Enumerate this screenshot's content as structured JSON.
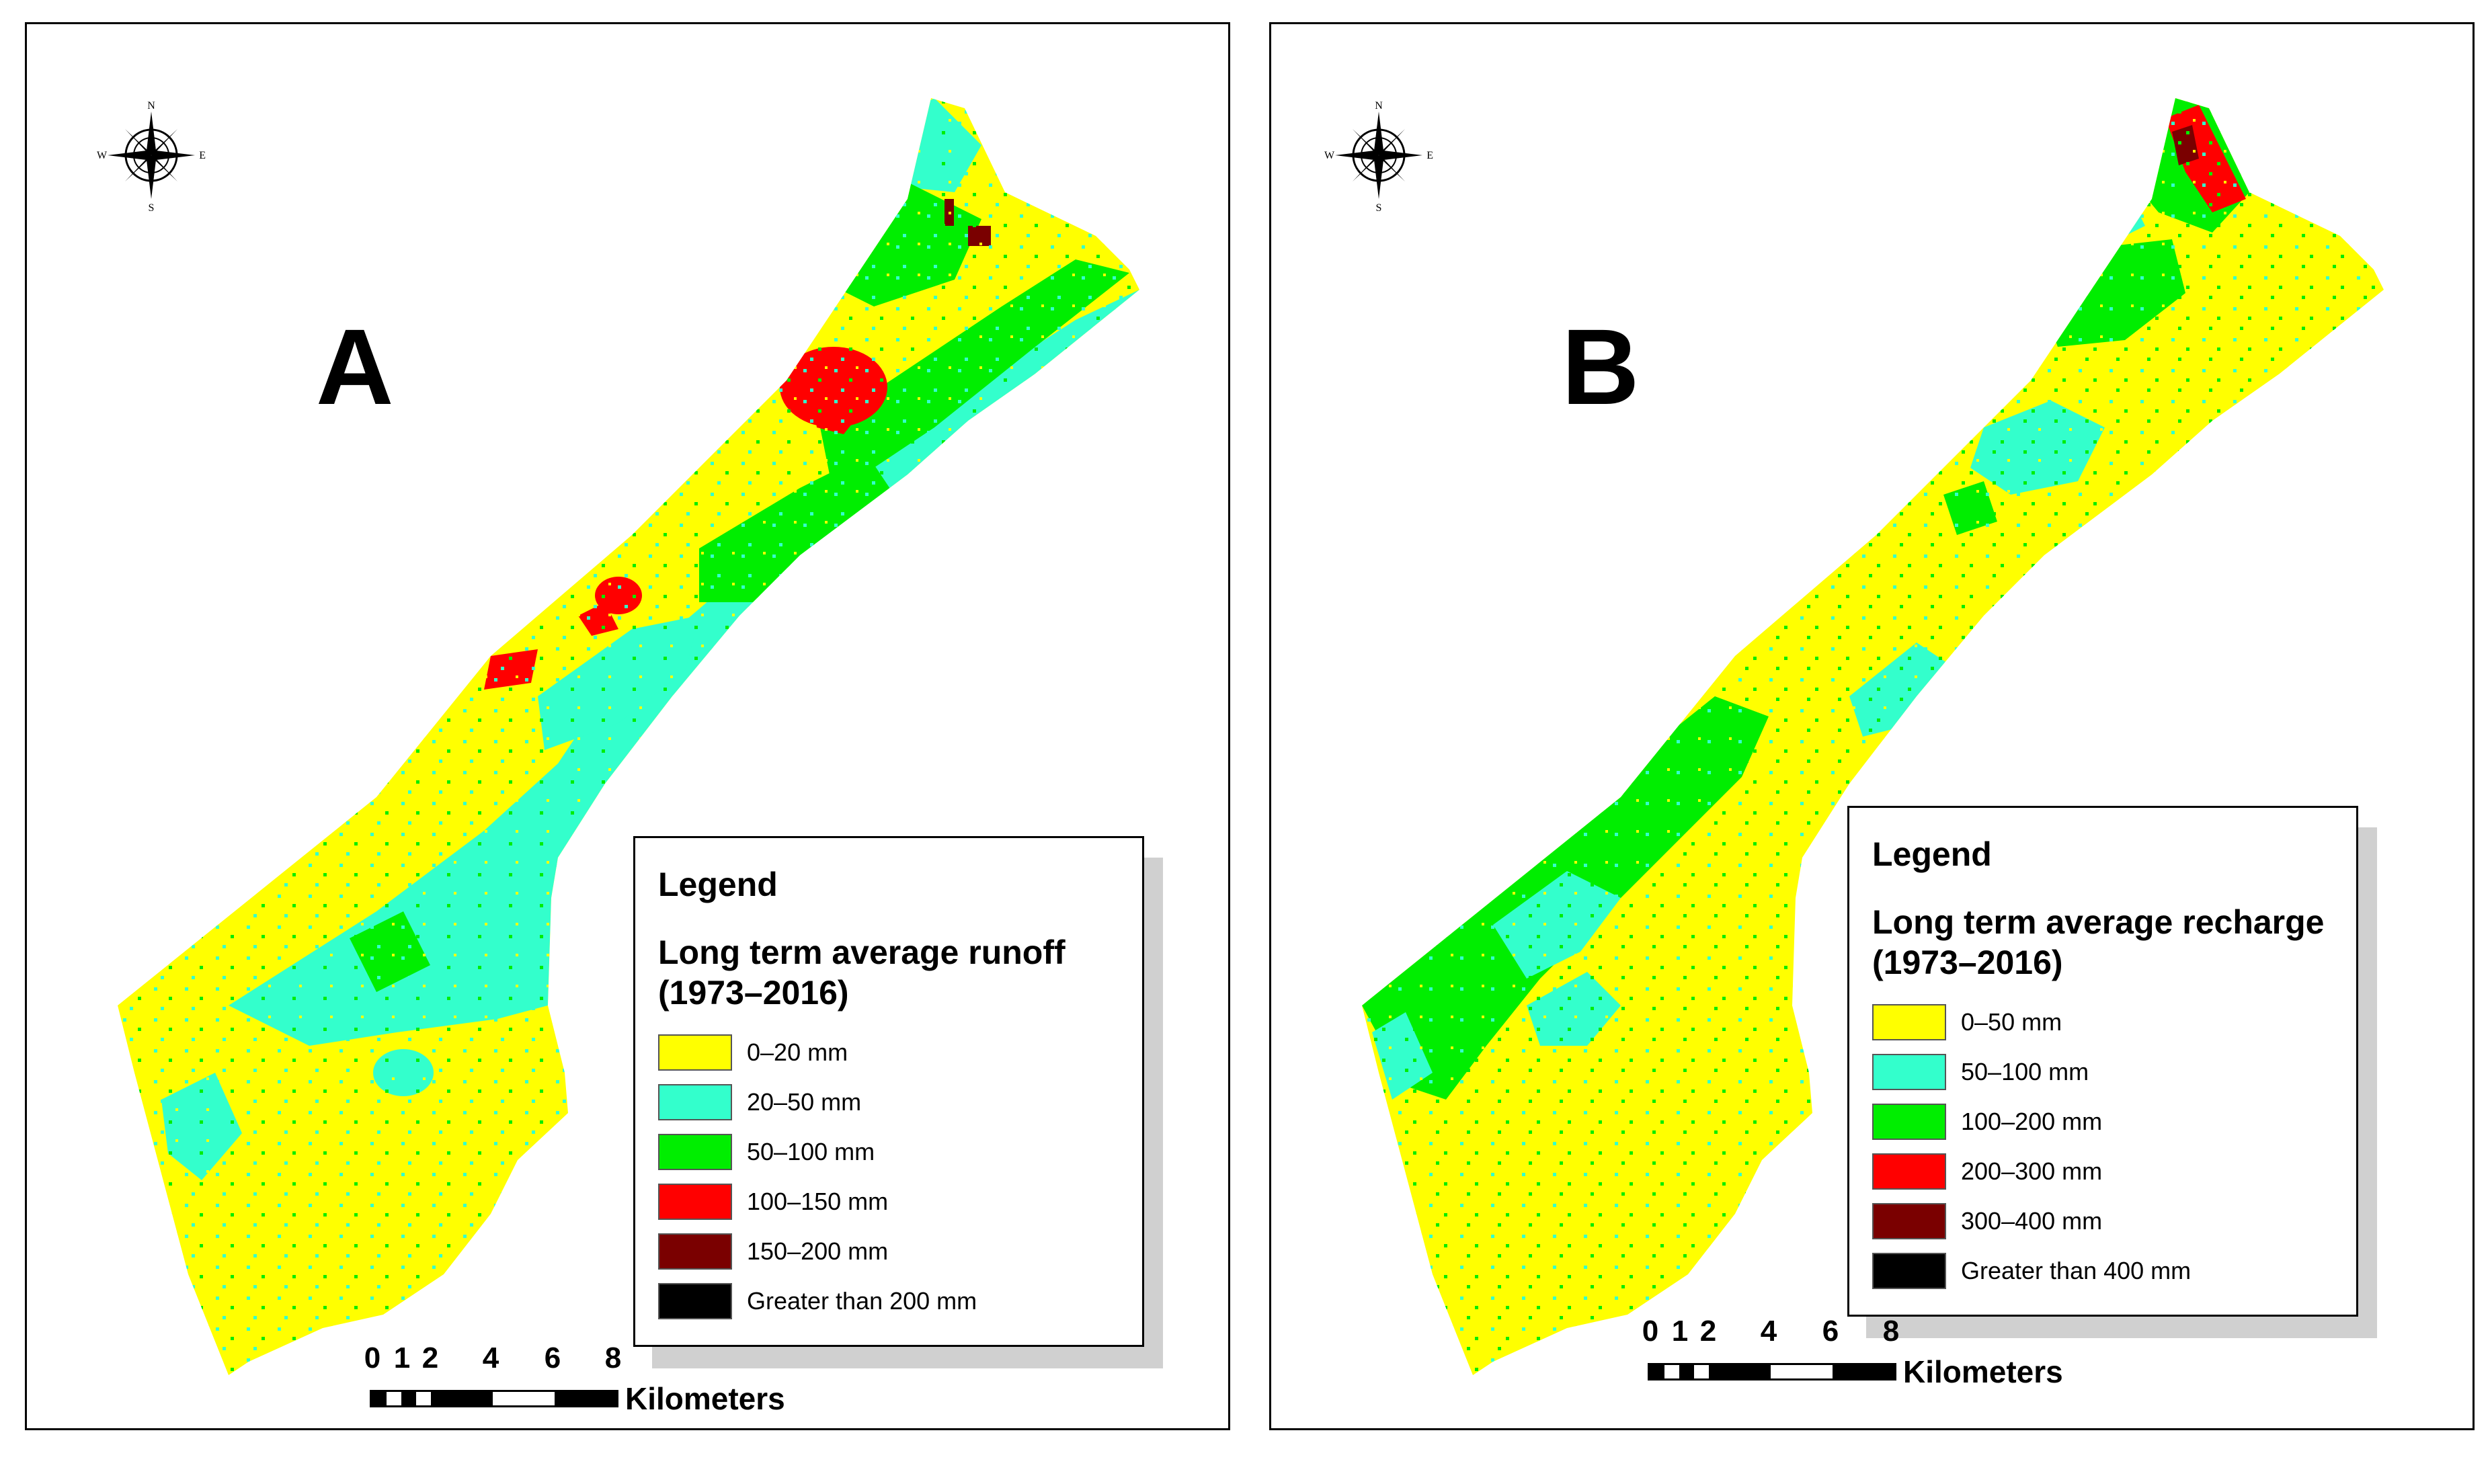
{
  "panels": [
    {
      "letter": "A",
      "legend_title": "Legend",
      "legend_subtitle": "Long term average runoff (1973–2016)",
      "classes": [
        {
          "label": "0–20 mm",
          "color": "#ffff00"
        },
        {
          "label": "20–50 mm",
          "color": "#33ffcc"
        },
        {
          "label": "50–100 mm",
          "color": "#00ee00"
        },
        {
          "label": "100–150 mm",
          "color": "#ff0000"
        },
        {
          "label": "150–200 mm",
          "color": "#7a0000"
        },
        {
          "label": "Greater than 200 mm",
          "color": "#000000"
        }
      ],
      "scale": {
        "ticks": [
          "0",
          "1",
          "2",
          "4",
          "6",
          "8"
        ],
        "unit": "Kilometers"
      },
      "compass": {
        "n": "N",
        "s": "S",
        "e": "E",
        "w": "W"
      }
    },
    {
      "letter": "B",
      "legend_title": "Legend",
      "legend_subtitle": "Long term average recharge (1973–2016)",
      "classes": [
        {
          "label": "0–50 mm",
          "color": "#ffff00"
        },
        {
          "label": "50–100 mm",
          "color": "#33ffcc"
        },
        {
          "label": "100–200 mm",
          "color": "#00ee00"
        },
        {
          "label": "200–300 mm",
          "color": "#ff0000"
        },
        {
          "label": "300–400 mm",
          "color": "#7a0000"
        },
        {
          "label": "Greater than 400 mm",
          "color": "#000000"
        }
      ],
      "scale": {
        "ticks": [
          "0",
          "1",
          "2",
          "4",
          "6",
          "8"
        ],
        "unit": "Kilometers"
      },
      "compass": {
        "n": "N",
        "s": "S",
        "e": "E",
        "w": "W"
      }
    }
  ]
}
